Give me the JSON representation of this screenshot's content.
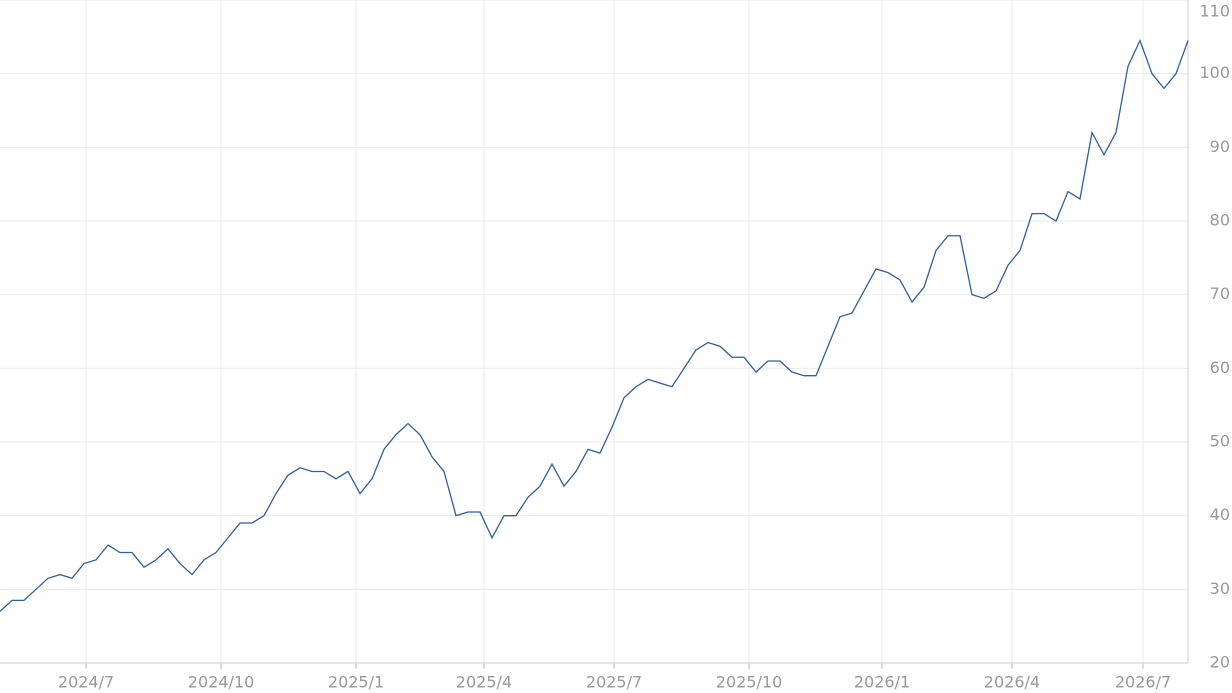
{
  "chart_data": {
    "type": "line",
    "values": [
      27,
      28.5,
      28.5,
      30,
      31.5,
      32,
      31.5,
      33.5,
      34,
      36,
      35,
      35,
      33,
      34,
      35.5,
      33.5,
      32,
      34,
      35,
      37,
      39,
      39,
      40,
      43,
      45.5,
      46.5,
      46,
      46,
      45,
      46,
      43,
      45,
      49,
      51,
      52.5,
      51,
      48,
      46,
      40,
      40.5,
      40.5,
      37,
      40,
      40,
      42.5,
      44,
      47,
      44,
      46,
      49,
      48.5,
      52,
      56,
      57.5,
      58.5,
      58,
      57.5,
      60,
      62.5,
      63.5,
      63,
      61.5,
      61.5,
      59.5,
      61,
      61,
      59.5,
      59,
      59,
      63,
      67,
      67.5,
      70.5,
      73.5,
      73,
      72,
      69,
      71,
      76,
      78,
      78,
      70,
      69.5,
      70.5,
      74,
      76,
      81,
      81,
      80,
      84,
      83,
      92,
      89,
      92,
      101,
      104.5,
      100,
      98,
      100,
      104.5
    ],
    "color": "#2e5f9e",
    "xlim": [
      0,
      99
    ],
    "xticks": [
      {
        "value": 7.17,
        "label": "2024/7"
      },
      {
        "value": 18.42,
        "label": "2024/10"
      },
      {
        "value": 29.67,
        "label": "2025/1"
      },
      {
        "value": 40.33,
        "label": "2025/4"
      },
      {
        "value": 51.17,
        "label": "2025/7"
      },
      {
        "value": 62.42,
        "label": "2025/10"
      },
      {
        "value": 73.5,
        "label": "2026/1"
      },
      {
        "value": 84.33,
        "label": "2026/4"
      },
      {
        "value": 95.25,
        "label": "2026/7"
      }
    ],
    "ylim": [
      20,
      110
    ],
    "yticks": [
      20,
      30,
      40,
      50,
      60,
      70,
      80,
      90,
      100,
      110
    ],
    "grid": true
  }
}
